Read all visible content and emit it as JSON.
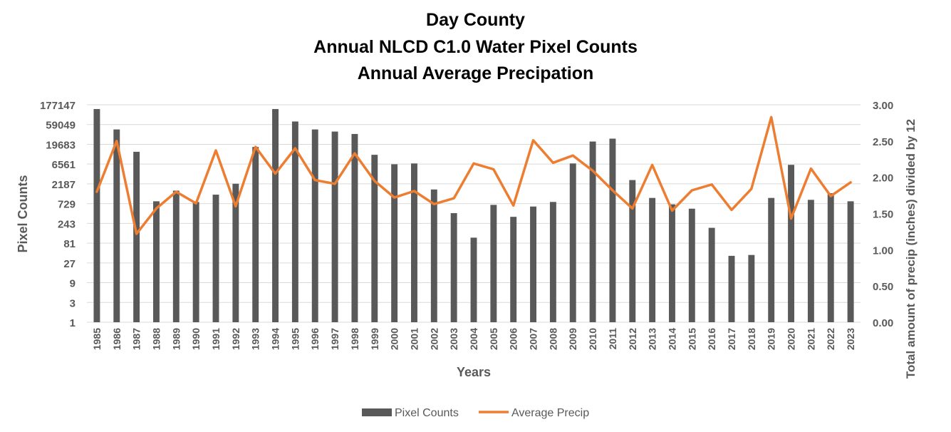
{
  "chart_data": {
    "type": "bar+line",
    "title_lines": [
      "Day County",
      "Annual NLCD C1.0 Water Pixel Counts",
      "Annual Average Precipation"
    ],
    "xlabel": "Years",
    "ylabel_left": "Pixel Counts",
    "ylabel_right": "Total amount of precip (inches) divided by 12",
    "y_left_scale": "log3",
    "y_left_ticks": [
      "1",
      "3",
      "9",
      "27",
      "81",
      "243",
      "729",
      "2187",
      "6561",
      "19683",
      "59049",
      "177147"
    ],
    "y_left_range": [
      1,
      177147
    ],
    "y_right_ticks": [
      "0.00",
      "0.50",
      "1.00",
      "1.50",
      "2.00",
      "2.50",
      "3.00"
    ],
    "y_right_range": [
      0,
      3
    ],
    "grid": true,
    "legend_position": "bottom-center",
    "categories": [
      "1985",
      "1986",
      "1987",
      "1988",
      "1989",
      "1990",
      "1991",
      "1992",
      "1993",
      "1994",
      "1995",
      "1996",
      "1997",
      "1998",
      "1999",
      "2000",
      "2001",
      "2002",
      "2003",
      "2004",
      "2005",
      "2006",
      "2007",
      "2008",
      "2009",
      "2010",
      "2011",
      "2012",
      "2013",
      "2014",
      "2015",
      "2016",
      "2017",
      "2018",
      "2019",
      "2020",
      "2021",
      "2022",
      "2023"
    ],
    "series": [
      {
        "name": "Pixel Counts",
        "type": "bar",
        "color": "#595959",
        "values": [
          140000,
          45000,
          13000,
          830,
          1500,
          800,
          1200,
          2200,
          17000,
          140000,
          70000,
          45000,
          40000,
          35000,
          11000,
          6500,
          6800,
          1600,
          430,
          110,
          680,
          350,
          620,
          800,
          6800,
          23000,
          27000,
          2700,
          1000,
          700,
          550,
          190,
          40,
          42,
          1000,
          6300,
          900,
          1300,
          830
        ]
      },
      {
        "name": "Average Precip",
        "type": "line",
        "color": "#ED7D31",
        "values": [
          1.8,
          2.5,
          1.22,
          1.57,
          1.8,
          1.64,
          2.37,
          1.6,
          2.42,
          2.05,
          2.4,
          1.96,
          1.91,
          2.33,
          1.95,
          1.72,
          1.81,
          1.63,
          1.71,
          2.19,
          2.11,
          1.61,
          2.51,
          2.2,
          2.3,
          2.09,
          1.82,
          1.57,
          2.17,
          1.54,
          1.82,
          1.9,
          1.55,
          1.84,
          2.83,
          1.43,
          2.12,
          1.74,
          1.93
        ]
      }
    ]
  }
}
